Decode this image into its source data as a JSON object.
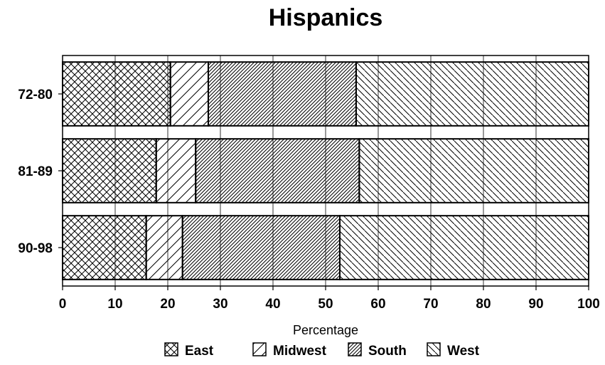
{
  "chart_data": {
    "type": "bar",
    "orientation": "horizontal",
    "stacked": true,
    "title": "Hispanics",
    "xlabel": "Percentage",
    "ylabel": "",
    "xlim": [
      0,
      100
    ],
    "xticks": [
      "0",
      "10",
      "20",
      "30",
      "40",
      "50",
      "60",
      "70",
      "80",
      "90",
      "100"
    ],
    "categories": [
      "72-80",
      "81-89",
      "90-98"
    ],
    "series": [
      {
        "name": "East",
        "pattern": "crosshatch",
        "values": [
          20.5,
          17.8,
          15.9
        ]
      },
      {
        "name": "Midwest",
        "pattern": "wide-diagonal",
        "values": [
          7.2,
          7.5,
          6.9
        ]
      },
      {
        "name": "South",
        "pattern": "dense-diagonal",
        "values": [
          28.1,
          31.1,
          29.9
        ]
      },
      {
        "name": "West",
        "pattern": "reverse-diagonal",
        "values": [
          44.2,
          43.6,
          47.3
        ]
      }
    ],
    "grid": "vertical",
    "legend_position": "bottom",
    "colors": {
      "fill": "#ffffff",
      "stroke": "#000000",
      "grid": "#000000"
    }
  }
}
